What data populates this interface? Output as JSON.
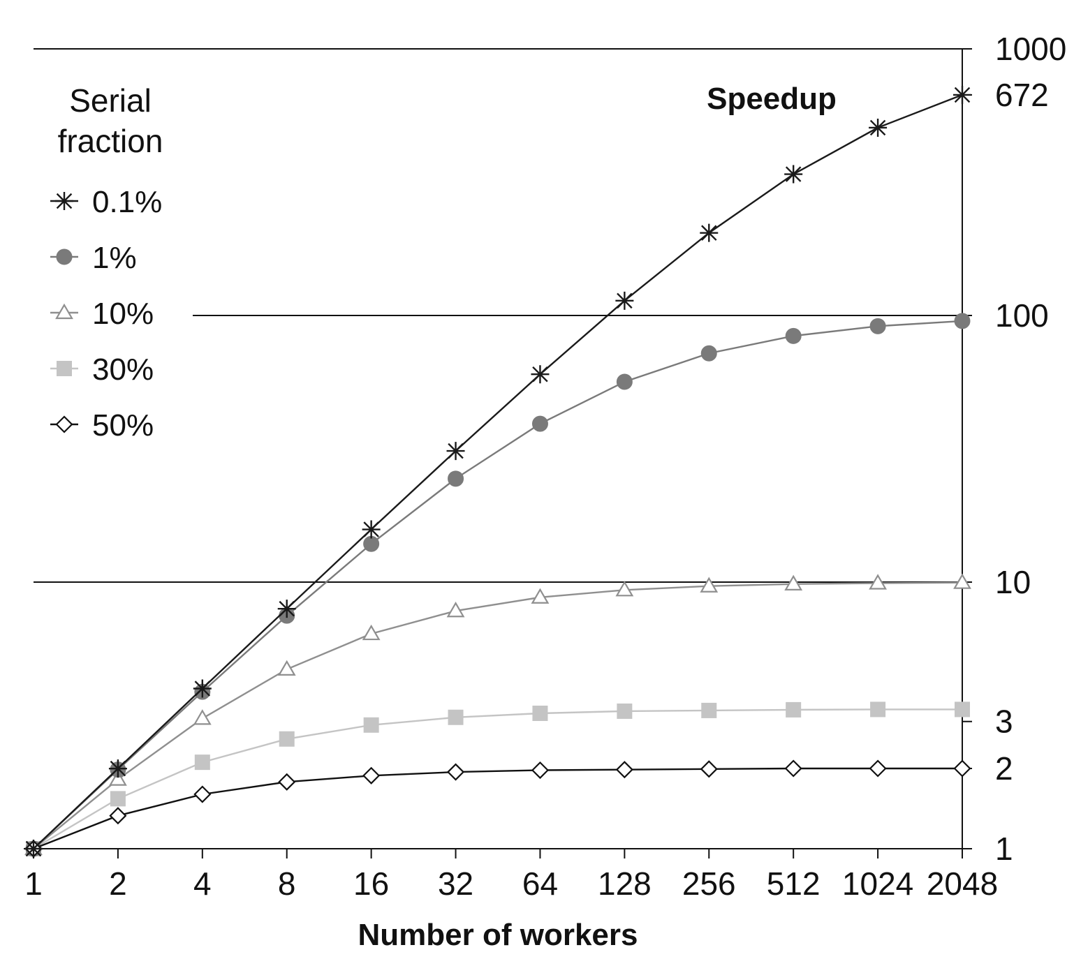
{
  "chart_data": {
    "type": "line",
    "title": "",
    "xlabel": "Number of workers",
    "ylabel": "Speedup",
    "x_scale": "log2",
    "y_scale": "log10",
    "x": [
      1,
      2,
      4,
      8,
      16,
      32,
      64,
      128,
      256,
      512,
      1024,
      2048
    ],
    "x_tick_labels": [
      "1",
      "2",
      "4",
      "8",
      "16",
      "32",
      "64",
      "128",
      "256",
      "512",
      "1024",
      "2048"
    ],
    "ylim": [
      1,
      1000
    ],
    "y_ticks": [
      1,
      2,
      3,
      10,
      100,
      672,
      1000
    ],
    "y_tick_labels": [
      "1",
      "2",
      "3",
      "10",
      "100",
      "672",
      "1000"
    ],
    "gridlines_y": [
      10,
      100,
      1000
    ],
    "legend": {
      "title_line1": "Serial",
      "title_line2": "fraction",
      "placement": "top-left"
    },
    "series": [
      {
        "name": "0.1%",
        "marker": "asterisk",
        "color": "#1a1a1a",
        "values": [
          1,
          1.998,
          3.988,
          7.944,
          15.76,
          31.04,
          60.2,
          113.6,
          204.1,
          338.8,
          506.2,
          672.0
        ]
      },
      {
        "name": "1%",
        "marker": "circle",
        "color": "#7a7a7a",
        "values": [
          1,
          1.98,
          3.88,
          7.48,
          13.91,
          24.43,
          39.26,
          56.39,
          72.11,
          83.8,
          91.18,
          95.35
        ]
      },
      {
        "name": "10%",
        "marker": "triangle",
        "color": "#8f8f8f",
        "values": [
          1,
          1.82,
          3.08,
          4.71,
          6.4,
          7.8,
          8.77,
          9.34,
          9.66,
          9.83,
          9.91,
          9.96
        ]
      },
      {
        "name": "30%",
        "marker": "square",
        "color": "#c4c4c4",
        "values": [
          1,
          1.54,
          2.11,
          2.58,
          2.91,
          3.11,
          3.22,
          3.28,
          3.3,
          3.32,
          3.33,
          3.33
        ]
      },
      {
        "name": "50%",
        "marker": "diamond",
        "color": "#111111",
        "values": [
          1,
          1.33,
          1.6,
          1.78,
          1.88,
          1.94,
          1.97,
          1.98,
          1.99,
          2.0,
          2.0,
          2.0
        ]
      }
    ]
  }
}
